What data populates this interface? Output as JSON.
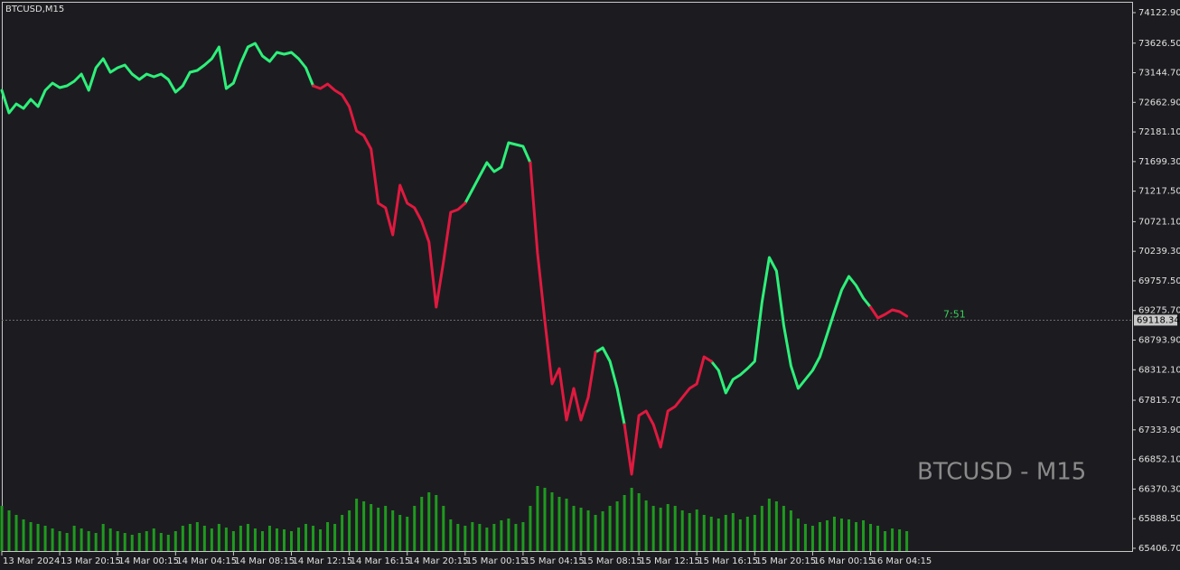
{
  "chart_data": {
    "type": "line",
    "title": "BTCUSD,M15",
    "watermark": "BTCUSD - M15",
    "countdown": "7:51",
    "background": "#1c1c20",
    "last_price": {
      "value": 69118.34,
      "label": "69118.34"
    },
    "ylim": [
      65362,
      74299
    ],
    "yticks": [
      {
        "value": 74122.9,
        "label": "74122.90"
      },
      {
        "value": 73626.5,
        "label": "73626.50"
      },
      {
        "value": 73144.7,
        "label": "73144.70"
      },
      {
        "value": 72662.9,
        "label": "72662.90"
      },
      {
        "value": 72181.1,
        "label": "72181.10"
      },
      {
        "value": 71699.3,
        "label": "71699.30"
      },
      {
        "value": 71217.5,
        "label": "71217.50"
      },
      {
        "value": 70721.1,
        "label": "70721.10"
      },
      {
        "value": 70239.3,
        "label": "70239.30"
      },
      {
        "value": 69757.5,
        "label": "69757.50"
      },
      {
        "value": 69275.7,
        "label": "69275.70"
      },
      {
        "value": 68793.9,
        "label": "68793.90"
      },
      {
        "value": 68312.1,
        "label": "68312.10"
      },
      {
        "value": 67815.7,
        "label": "67815.70"
      },
      {
        "value": 67333.9,
        "label": "67333.90"
      },
      {
        "value": 66852.1,
        "label": "66852.10"
      },
      {
        "value": 66370.3,
        "label": "66370.30"
      },
      {
        "value": 65888.5,
        "label": "65888.50"
      },
      {
        "value": 65406.7,
        "label": "65406.70"
      }
    ],
    "xlim": [
      0,
      156
    ],
    "xticks": [
      {
        "value": 0,
        "label": "13 Mar 2024"
      },
      {
        "value": 8,
        "label": "13 Mar 20:15"
      },
      {
        "value": 16,
        "label": "14 Mar 00:15"
      },
      {
        "value": 24,
        "label": "14 Mar 04:15"
      },
      {
        "value": 32,
        "label": "14 Mar 08:15"
      },
      {
        "value": 40,
        "label": "14 Mar 12:15"
      },
      {
        "value": 48,
        "label": "14 Mar 16:15"
      },
      {
        "value": 56,
        "label": "14 Mar 20:15"
      },
      {
        "value": 64,
        "label": "15 Mar 00:15"
      },
      {
        "value": 72,
        "label": "15 Mar 04:15"
      },
      {
        "value": 80,
        "label": "15 Mar 08:15"
      },
      {
        "value": 88,
        "label": "15 Mar 12:15"
      },
      {
        "value": 96,
        "label": "15 Mar 16:15"
      },
      {
        "value": 104,
        "label": "15 Mar 20:15"
      },
      {
        "value": 112,
        "label": "16 Mar 00:15"
      },
      {
        "value": 120,
        "label": "16 Mar 04:15"
      }
    ],
    "x": [
      0,
      1,
      2,
      3,
      4,
      5,
      6,
      7,
      8,
      9,
      10,
      11,
      12,
      13,
      14,
      15,
      16,
      17,
      18,
      19,
      20,
      21,
      22,
      23,
      24,
      25,
      26,
      27,
      28,
      29,
      30,
      31,
      32,
      33,
      34,
      35,
      36,
      37,
      38,
      39,
      40,
      41,
      42,
      43,
      44,
      45,
      46,
      47,
      48,
      49,
      50,
      51,
      52,
      53,
      54,
      55,
      56,
      57,
      58,
      59,
      60,
      61,
      62,
      63,
      64,
      65,
      66,
      67,
      68,
      69,
      70,
      71,
      72,
      73,
      74,
      75,
      76,
      77,
      78,
      79,
      80,
      81,
      82,
      83,
      84,
      85,
      86,
      87,
      88,
      89,
      90,
      91,
      92,
      93,
      94,
      95,
      96,
      97,
      98,
      99,
      100,
      101,
      102,
      103,
      104,
      105,
      106,
      107,
      108,
      109,
      110,
      111,
      112,
      113,
      114,
      115,
      116,
      117,
      118,
      119,
      120,
      121,
      122,
      123,
      124,
      125
    ],
    "series": [
      {
        "color": "#2ef07a",
        "values": [
          72859,
          72491,
          72638,
          72565,
          72712,
          72594,
          72859,
          72976,
          72903,
          72932,
          73006,
          73123,
          72859,
          73226,
          73373,
          73153,
          73226,
          73270,
          73123,
          73035,
          73123,
          73079,
          73123,
          73035,
          72829,
          72932,
          73153,
          73182,
          73270,
          73373,
          73564,
          72888,
          72976,
          73300,
          73564,
          73623,
          73417,
          73329,
          73476,
          73447,
          73476,
          73373,
          73226,
          72932,
          null,
          null,
          null,
          null,
          null,
          null,
          null,
          null,
          null,
          null,
          null,
          null,
          null,
          null,
          null,
          null,
          null,
          null,
          null,
          null,
          71021,
          71242,
          71462,
          71683,
          71536,
          71609,
          72006,
          71977,
          71947,
          71683,
          null,
          null,
          null,
          null,
          null,
          null,
          null,
          null,
          68596,
          68669,
          68449,
          68008,
          67420,
          null,
          null,
          null,
          null,
          null,
          null,
          null,
          null,
          null,
          null,
          null,
          68449,
          68302,
          67934,
          68155,
          68228,
          68331,
          68449,
          69404,
          70139,
          69919,
          69037,
          68375,
          68008,
          68155,
          68302,
          68522,
          68890,
          69257,
          69609,
          69830,
          69683,
          69478,
          69331,
          null,
          null,
          null,
          null,
          null
        ]
      },
      {
        "color": "#e0193f",
        "values": [
          null,
          null,
          null,
          null,
          null,
          null,
          null,
          null,
          null,
          null,
          null,
          null,
          null,
          null,
          null,
          null,
          null,
          null,
          null,
          null,
          null,
          null,
          null,
          null,
          null,
          null,
          null,
          null,
          null,
          null,
          null,
          null,
          null,
          null,
          null,
          null,
          null,
          null,
          null,
          null,
          null,
          null,
          null,
          72932,
          72888,
          72961,
          72859,
          72785,
          72594,
          72197,
          72124,
          71903,
          71021,
          70948,
          70507,
          71315,
          71021,
          70948,
          70727,
          70389,
          69331,
          70066,
          70874,
          70918,
          71021,
          null,
          null,
          null,
          null,
          null,
          null,
          null,
          null,
          71683,
          70213,
          69110,
          68081,
          68331,
          67493,
          68008,
          67493,
          67861,
          68596,
          null,
          null,
          null,
          67420,
          66612,
          67567,
          67640,
          67420,
          67052,
          67640,
          67714,
          67861,
          68008,
          68081,
          68522,
          68449,
          null,
          null,
          null,
          null,
          null,
          null,
          null,
          null,
          null,
          null,
          null,
          null,
          null,
          null,
          null,
          null,
          null,
          null,
          null,
          null,
          null,
          69331,
          69154,
          69213,
          69287,
          69257,
          69184
        ]
      }
    ],
    "volume": {
      "color": "#1f9a1f",
      "ylim": [
        0,
        100
      ],
      "values": [
        50,
        45,
        40,
        35,
        32,
        30,
        28,
        25,
        22,
        20,
        28,
        25,
        22,
        20,
        30,
        25,
        22,
        20,
        18,
        20,
        22,
        25,
        20,
        18,
        22,
        28,
        30,
        32,
        28,
        25,
        30,
        26,
        22,
        28,
        30,
        25,
        22,
        28,
        25,
        24,
        22,
        26,
        30,
        28,
        24,
        32,
        30,
        40,
        45,
        58,
        55,
        52,
        48,
        50,
        45,
        40,
        38,
        50,
        60,
        65,
        62,
        50,
        35,
        30,
        28,
        32,
        30,
        26,
        30,
        34,
        36,
        30,
        32,
        50,
        72,
        70,
        65,
        60,
        58,
        50,
        48,
        45,
        40,
        44,
        50,
        55,
        62,
        70,
        64,
        56,
        50,
        48,
        52,
        50,
        45,
        42,
        46,
        40,
        38,
        36,
        40,
        42,
        35,
        38,
        40,
        50,
        58,
        55,
        50,
        45,
        36,
        30,
        28,
        32,
        34,
        38,
        36,
        35,
        32,
        34,
        30,
        28,
        22,
        25,
        24,
        22
      ]
    }
  }
}
